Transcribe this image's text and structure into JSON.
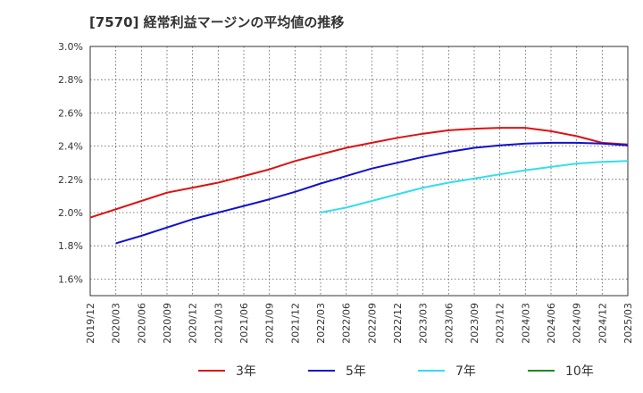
{
  "chart_data": {
    "type": "line",
    "title": "[7570]  経常利益マージンの平均値の推移",
    "xlabel": "",
    "ylabel": "",
    "ylim": [
      1.5,
      3.0
    ],
    "yticks": [
      "1.6%",
      "1.8%",
      "2.0%",
      "2.2%",
      "2.4%",
      "2.6%",
      "2.8%",
      "3.0%"
    ],
    "xticks": [
      "2019/12",
      "2020/03",
      "2020/06",
      "2020/09",
      "2020/12",
      "2021/03",
      "2021/06",
      "2021/09",
      "2021/12",
      "2022/03",
      "2022/06",
      "2022/09",
      "2022/12",
      "2023/03",
      "2023/06",
      "2023/09",
      "2023/12",
      "2024/03",
      "2024/06",
      "2024/09",
      "2024/12",
      "2025/03"
    ],
    "grid": true,
    "legend_position": "bottom",
    "series": [
      {
        "name": "3年",
        "color": "#dd1111",
        "points": [
          [
            "2019/12",
            1.97
          ],
          [
            "2020/03",
            2.02
          ],
          [
            "2020/06",
            2.07
          ],
          [
            "2020/09",
            2.12
          ],
          [
            "2020/12",
            2.15
          ],
          [
            "2021/03",
            2.18
          ],
          [
            "2021/06",
            2.22
          ],
          [
            "2021/09",
            2.26
          ],
          [
            "2021/12",
            2.31
          ],
          [
            "2022/03",
            2.35
          ],
          [
            "2022/06",
            2.39
          ],
          [
            "2022/09",
            2.42
          ],
          [
            "2022/12",
            2.45
          ],
          [
            "2023/03",
            2.475
          ],
          [
            "2023/06",
            2.495
          ],
          [
            "2023/09",
            2.505
          ],
          [
            "2023/12",
            2.51
          ],
          [
            "2024/03",
            2.51
          ],
          [
            "2024/06",
            2.49
          ],
          [
            "2024/09",
            2.46
          ],
          [
            "2024/12",
            2.42
          ],
          [
            "2025/03",
            2.41
          ]
        ]
      },
      {
        "name": "5年",
        "color": "#1111cc",
        "points": [
          [
            "2020/03",
            1.815
          ],
          [
            "2020/06",
            1.86
          ],
          [
            "2020/09",
            1.91
          ],
          [
            "2020/12",
            1.96
          ],
          [
            "2021/03",
            2.0
          ],
          [
            "2021/06",
            2.04
          ],
          [
            "2021/09",
            2.08
          ],
          [
            "2021/12",
            2.125
          ],
          [
            "2022/03",
            2.175
          ],
          [
            "2022/06",
            2.22
          ],
          [
            "2022/09",
            2.265
          ],
          [
            "2022/12",
            2.3
          ],
          [
            "2023/03",
            2.335
          ],
          [
            "2023/06",
            2.365
          ],
          [
            "2023/09",
            2.39
          ],
          [
            "2023/12",
            2.405
          ],
          [
            "2024/03",
            2.415
          ],
          [
            "2024/06",
            2.42
          ],
          [
            "2024/09",
            2.42
          ],
          [
            "2024/12",
            2.415
          ],
          [
            "2025/03",
            2.405
          ]
        ]
      },
      {
        "name": "7年",
        "color": "#33ddee",
        "points": [
          [
            "2022/03",
            2.0
          ],
          [
            "2022/06",
            2.03
          ],
          [
            "2022/09",
            2.07
          ],
          [
            "2022/12",
            2.11
          ],
          [
            "2023/03",
            2.15
          ],
          [
            "2023/06",
            2.18
          ],
          [
            "2023/09",
            2.205
          ],
          [
            "2023/12",
            2.23
          ],
          [
            "2024/03",
            2.255
          ],
          [
            "2024/06",
            2.275
          ],
          [
            "2024/09",
            2.295
          ],
          [
            "2024/12",
            2.305
          ],
          [
            "2025/03",
            2.31
          ]
        ]
      },
      {
        "name": "10年",
        "color": "#228822",
        "points": []
      }
    ]
  }
}
